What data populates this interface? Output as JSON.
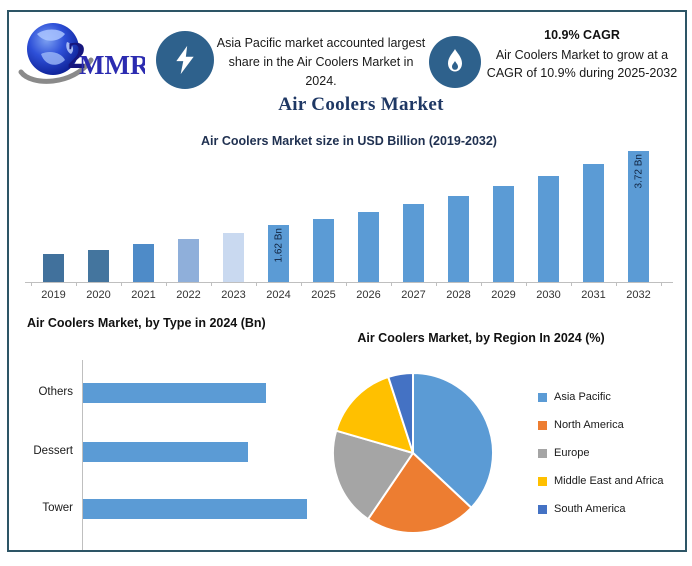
{
  "header": {
    "logo_text": "MMR",
    "banner": "Asia Pacific market accounted largest share in the Air Coolers Market in 2024.",
    "cagr_title": "10.9% CAGR",
    "cagr_text": "Air Coolers Market to grow at a CAGR of 10.9% during 2025-2032"
  },
  "main_title": "Air Coolers Market",
  "colors": {
    "frame_border": "#2d5566",
    "icon_circle": "#2E618C",
    "title_navy": "#1F3864",
    "bar_primary": "#5B9BD5",
    "axis_gray": "#BFBFBF"
  },
  "chart_data": [
    {
      "id": "market_size",
      "type": "bar",
      "title": "Air Coolers Market size in USD Billion (2019-2032)",
      "categories": [
        "2019",
        "2020",
        "2021",
        "2022",
        "2023",
        "2024",
        "2025",
        "2026",
        "2027",
        "2028",
        "2029",
        "2030",
        "2031",
        "2032"
      ],
      "values": [
        0.8,
        0.92,
        1.08,
        1.23,
        1.4,
        1.62,
        1.8,
        1.99,
        2.21,
        2.45,
        2.72,
        3.02,
        3.35,
        3.72
      ],
      "unit": "USD Bn",
      "ylim": [
        0,
        3.72
      ],
      "grid": false,
      "legend": "none",
      "bar_labels": {
        "2024": "1.62 Bn",
        "2032": "3.72 Bn"
      },
      "bar_colors": [
        "#41719C",
        "#44759E",
        "#4E8BC8",
        "#8FAFDA",
        "#C9D9F0",
        "#5B9BD5",
        "#5B9BD5",
        "#5B9BD5",
        "#5B9BD5",
        "#5B9BD5",
        "#5B9BD5",
        "#5B9BD5",
        "#5B9BD5",
        "#5B9BD5"
      ]
    },
    {
      "id": "by_type",
      "type": "bar",
      "orientation": "horizontal",
      "title": "Air Coolers Market, by Type in 2024 (Bn)",
      "categories": [
        "Others",
        "Dessert",
        "Tower"
      ],
      "values": [
        0.53,
        0.48,
        0.65
      ],
      "values_estimated": true,
      "color": "#5B9BD5",
      "grid": false,
      "legend": "none"
    },
    {
      "id": "by_region",
      "type": "pie",
      "title": "Air Coolers Market, by Region In 2024 (%)",
      "labels": [
        "Asia Pacific",
        "North America",
        "Europe",
        "Middle East and Africa",
        "South America"
      ],
      "values": [
        37,
        22.5,
        20,
        15.5,
        5
      ],
      "values_estimated": true,
      "colors": [
        "#5B9BD5",
        "#ED7D31",
        "#A5A5A5",
        "#FFC000",
        "#4472C4"
      ],
      "legend_position": "right",
      "start_angle_deg": 0
    }
  ]
}
